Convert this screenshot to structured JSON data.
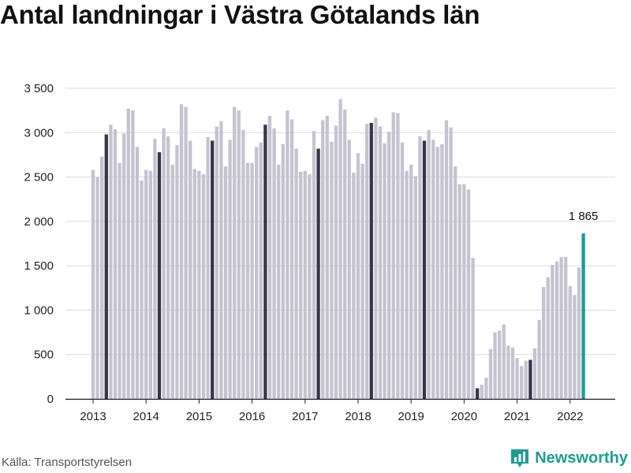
{
  "title": "Antal landningar i Västra Götalands län",
  "source": "Källa: Transportstyrelsen",
  "brand": "Newsworthy",
  "colors": {
    "normal": "#c5c3d0",
    "april": "#37354a",
    "latest": "#1a9e94",
    "grid": "#d9d9d9",
    "brand": "#1e9e8f"
  },
  "chart_data": {
    "type": "bar",
    "title": "Antal landningar i Västra Götalands län",
    "xlabel": "",
    "ylabel": "",
    "ylim": [
      0,
      3700
    ],
    "yticks": [
      0,
      500,
      1000,
      1500,
      2000,
      2500,
      3000,
      3500
    ],
    "ytick_labels": [
      "0",
      "500",
      "1 000",
      "1 500",
      "2 000",
      "2 500",
      "3 000",
      "3 500"
    ],
    "xtick_labels": [
      "2013",
      "2014",
      "2015",
      "2016",
      "2017",
      "2018",
      "2019",
      "2020",
      "2021",
      "2022"
    ],
    "grid": true,
    "start": "2013-01",
    "annotation": {
      "label": "1 865",
      "month": "2022-04"
    },
    "values": [
      2580,
      2500,
      2730,
      2980,
      3090,
      3040,
      2660,
      2990,
      3270,
      3250,
      2840,
      2460,
      2580,
      2570,
      2930,
      2780,
      3050,
      2960,
      2640,
      2860,
      3320,
      3290,
      2910,
      2590,
      2570,
      2530,
      2950,
      2910,
      3070,
      3130,
      2620,
      2920,
      3290,
      3250,
      3030,
      2660,
      2660,
      2840,
      2890,
      3090,
      3190,
      3050,
      2640,
      2870,
      3250,
      3150,
      2820,
      2560,
      2570,
      2530,
      3020,
      2820,
      3140,
      3190,
      2900,
      3080,
      3380,
      3260,
      2920,
      2550,
      2770,
      2650,
      3100,
      3110,
      3170,
      3070,
      2880,
      3010,
      3230,
      3220,
      2890,
      2570,
      2640,
      2510,
      2960,
      2910,
      3030,
      2920,
      2840,
      2870,
      3140,
      3060,
      2620,
      2420,
      2420,
      2360,
      1590,
      120,
      160,
      240,
      560,
      750,
      770,
      840,
      600,
      580,
      460,
      370,
      430,
      440,
      570,
      890,
      1260,
      1370,
      1510,
      1550,
      1600,
      1600,
      1270,
      1170,
      1480,
      1865
    ]
  }
}
